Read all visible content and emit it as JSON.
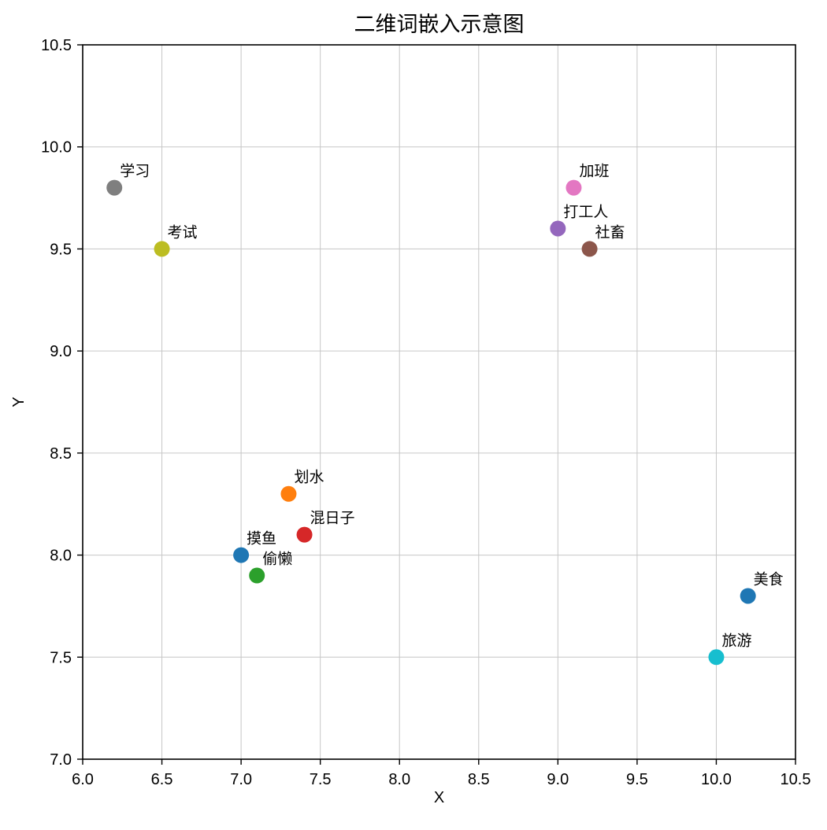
{
  "figure": {
    "title": "二维词嵌入示意图",
    "xlabel": "X",
    "ylabel": "Y"
  },
  "chart_data": {
    "type": "scatter",
    "title": "二维词嵌入示意图",
    "xlabel": "X",
    "ylabel": "Y",
    "xlim": [
      6.0,
      10.5
    ],
    "ylim": [
      7.0,
      10.5
    ],
    "xticks": [
      6.0,
      6.5,
      7.0,
      7.5,
      8.0,
      8.5,
      9.0,
      9.5,
      10.0,
      10.5
    ],
    "yticks": [
      7.0,
      7.5,
      8.0,
      8.5,
      9.0,
      9.5,
      10.0,
      10.5
    ],
    "xtick_labels": [
      "6.0",
      "6.5",
      "7.0",
      "7.5",
      "8.0",
      "8.5",
      "9.0",
      "9.5",
      "10.0",
      "10.5"
    ],
    "ytick_labels": [
      "7.0",
      "7.5",
      "8.0",
      "8.5",
      "9.0",
      "9.5",
      "10.0",
      "10.5"
    ],
    "grid": true,
    "grid_color": "#c6c6c6",
    "spine_color": "#000000",
    "marker_radius": 10,
    "points": [
      {
        "label": "摸鱼",
        "x": 7.0,
        "y": 8.0,
        "color": "#1f77b4"
      },
      {
        "label": "划水",
        "x": 7.3,
        "y": 8.3,
        "color": "#ff7f0e"
      },
      {
        "label": "偷懒",
        "x": 7.1,
        "y": 7.9,
        "color": "#2ca02c"
      },
      {
        "label": "混日子",
        "x": 7.4,
        "y": 8.1,
        "color": "#d62728"
      },
      {
        "label": "打工人",
        "x": 9.0,
        "y": 9.6,
        "color": "#9467bd"
      },
      {
        "label": "社畜",
        "x": 9.2,
        "y": 9.5,
        "color": "#8c564b"
      },
      {
        "label": "加班",
        "x": 9.1,
        "y": 9.8,
        "color": "#e377c2"
      },
      {
        "label": "学习",
        "x": 6.2,
        "y": 9.8,
        "color": "#7f7f7f"
      },
      {
        "label": "考试",
        "x": 6.5,
        "y": 9.5,
        "color": "#bcbd22"
      },
      {
        "label": "旅游",
        "x": 10.0,
        "y": 7.5,
        "color": "#17becf"
      },
      {
        "label": "美食",
        "x": 10.2,
        "y": 7.8,
        "color": "#1f77b4"
      }
    ]
  }
}
